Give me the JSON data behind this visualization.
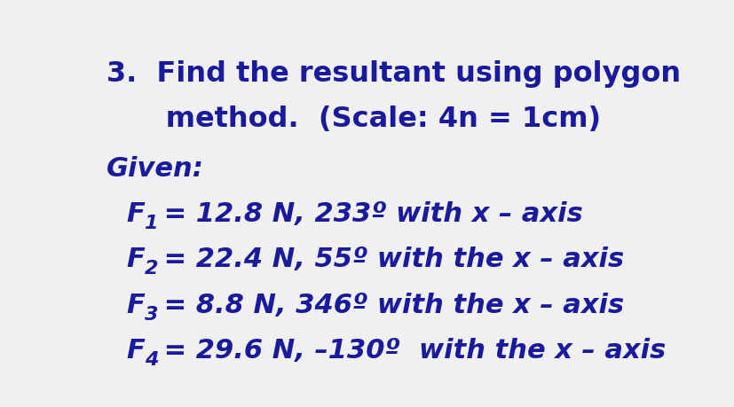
{
  "background_color": "#f0f0f0",
  "text_color": "#1a1a9c",
  "title_line1": "3.  Find the resultant using polygon",
  "title_line2": "      method.  (Scale: 4n = 1cm)",
  "given_label": "Given:",
  "lines": [
    {
      "full": "$F_1$  =  12.8 N, 233º  with  x – axis"
    },
    {
      "full": "$F_2$  =  22.4 N, 55º  with the x – axis"
    },
    {
      "full": "$F_3$  =  8.8 N, 346º  with the x – axis"
    },
    {
      "full": "$F_4$  =  29.6 N, –130º  with the x – axis"
    }
  ],
  "line_labels": [
    "F_1",
    "F_2",
    "F_3",
    "F_4"
  ],
  "line_values": [
    " = 12.8 N, 233º with x – axis",
    " = 22.4 N, 55º with the x – axis",
    " = 8.8 N, 346º with the x – axis",
    " = 29.6 N, –130º  with the x – axis"
  ],
  "title_fontsize": 23,
  "given_fontsize": 22,
  "body_fontsize": 22,
  "figsize": [
    8.28,
    4.6
  ],
  "dpi": 100
}
